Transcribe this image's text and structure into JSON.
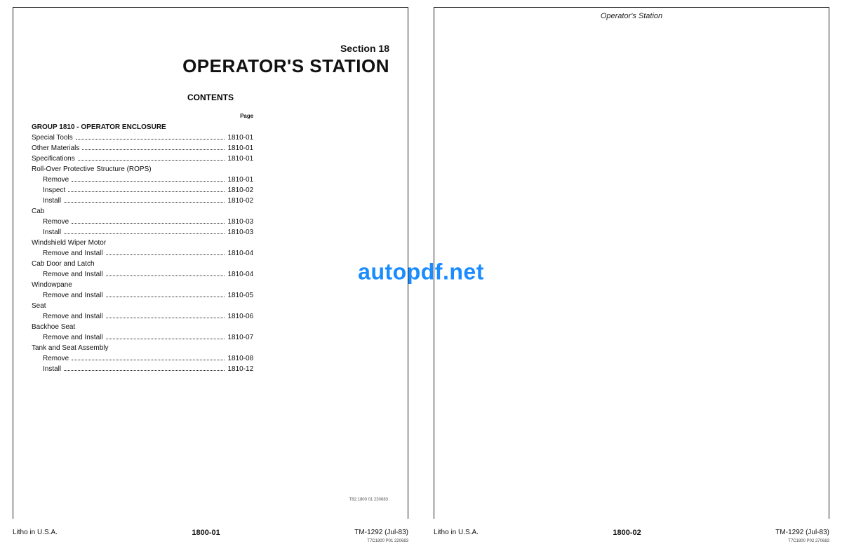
{
  "watermark": "autopdf.net",
  "left": {
    "sectionLabel": "Section 18",
    "mainTitle": "OPERATOR'S STATION",
    "contentsLabel": "CONTENTS",
    "pageHead": "Page",
    "groupTitle": "GROUP 1810 - OPERATOR ENCLOSURE",
    "toc": [
      {
        "level": 1,
        "label": "Special Tools",
        "page": "1810-01"
      },
      {
        "level": 1,
        "label": "Other Materials",
        "page": "1810-01"
      },
      {
        "level": 1,
        "label": "Specifications",
        "page": "1810-01"
      },
      {
        "level": 1,
        "label": "Roll-Over Protective Structure (ROPS)",
        "page": ""
      },
      {
        "level": 2,
        "label": "Remove",
        "page": "1810-01"
      },
      {
        "level": 2,
        "label": "Inspect",
        "page": "1810-02"
      },
      {
        "level": 2,
        "label": "Install",
        "page": "1810-02"
      },
      {
        "level": 1,
        "label": "Cab",
        "page": ""
      },
      {
        "level": 2,
        "label": "Remove",
        "page": "1810-03"
      },
      {
        "level": 2,
        "label": "Install",
        "page": "1810-03"
      },
      {
        "level": 1,
        "label": "Windshield Wiper Motor",
        "page": ""
      },
      {
        "level": 2,
        "label": "Remove and Install",
        "page": "1810-04"
      },
      {
        "level": 1,
        "label": "Cab Door and Latch",
        "page": ""
      },
      {
        "level": 2,
        "label": "Remove and Install",
        "page": "1810-04"
      },
      {
        "level": 1,
        "label": "Windowpane",
        "page": ""
      },
      {
        "level": 2,
        "label": "Remove and Install",
        "page": "1810-05"
      },
      {
        "level": 1,
        "label": "Seat",
        "page": ""
      },
      {
        "level": 2,
        "label": "Remove and Install",
        "page": "1810-06"
      },
      {
        "level": 1,
        "label": "Backhoe Seat",
        "page": ""
      },
      {
        "level": 2,
        "label": "Remove and Install",
        "page": "1810-07"
      },
      {
        "level": 1,
        "label": "Tank and Seat Assembly",
        "page": ""
      },
      {
        "level": 2,
        "label": "Remove",
        "page": "1810-08"
      },
      {
        "level": 2,
        "label": "Install",
        "page": "1810-12"
      }
    ],
    "tinyCode": "T82;1800 01 230683",
    "footer": {
      "left": "Litho in U.S.A.",
      "center": "1800-01",
      "right": "TM-1292 (Jul-83)",
      "rightSmall": "T7C1800  P01 220683"
    }
  },
  "right": {
    "headerTitle": "Operator's Station",
    "footer": {
      "left": "Litho in U.S.A.",
      "center": "1800-02",
      "right": "TM-1292 (Jul-83)",
      "rightSmall": "T7C1800  P02 270683"
    }
  }
}
